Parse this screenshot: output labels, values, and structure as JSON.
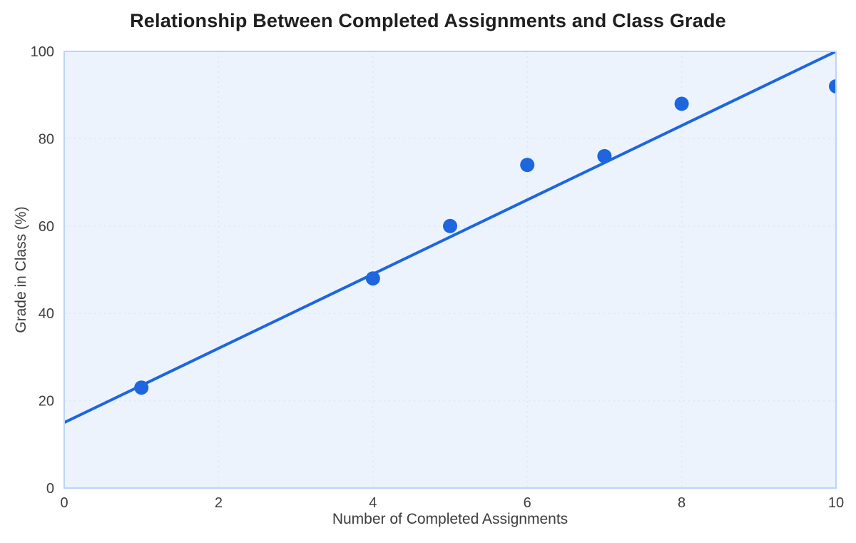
{
  "chart_data": {
    "type": "scatter",
    "title": "Relationship Between Completed Assignments and Class Grade",
    "xlabel": "Number of Completed Assignments",
    "ylabel": "Grade in Class (%)",
    "xlim": [
      0,
      10
    ],
    "ylim": [
      0,
      100
    ],
    "xticks": [
      0,
      2,
      4,
      6,
      8,
      10
    ],
    "yticks": [
      0,
      20,
      40,
      60,
      80,
      100
    ],
    "grid": true,
    "legend_position": "none",
    "points": [
      {
        "x": 1,
        "y": 23
      },
      {
        "x": 4,
        "y": 48
      },
      {
        "x": 5,
        "y": 60
      },
      {
        "x": 6,
        "y": 74
      },
      {
        "x": 7,
        "y": 76
      },
      {
        "x": 8,
        "y": 88
      },
      {
        "x": 10,
        "y": 92
      }
    ],
    "trendline": {
      "x_start": 0,
      "y_start": 15,
      "x_end": 10,
      "y_end": 100
    },
    "colors": {
      "point": "#1d66e0",
      "line": "#1d66e0",
      "plot_background": "#ecf3fd",
      "plot_border": "#bcd4f6",
      "grid": "#dbe7f8",
      "title_text": "#1f1f1f",
      "axis_text": "#3d3d3d"
    }
  }
}
